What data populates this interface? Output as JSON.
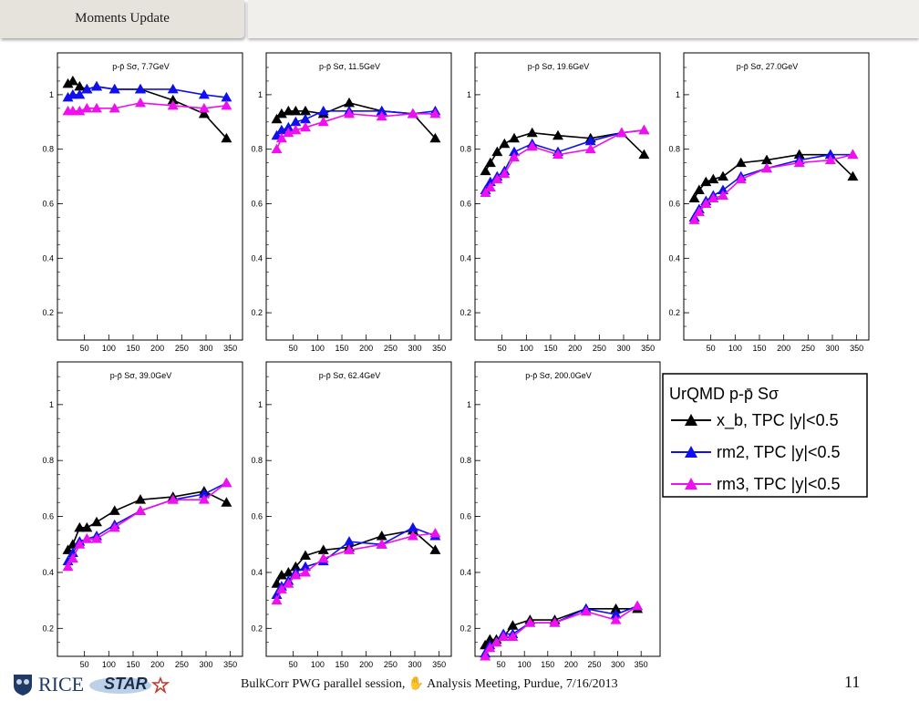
{
  "header": {
    "title": "Moments Update"
  },
  "footer": {
    "text": "BulkCorr PWG parallel session,  ✋  Analysis Meeting,  Purdue,  7/16/2013",
    "page_number": "11",
    "logos": [
      "RICE",
      "STAR"
    ]
  },
  "colors": {
    "xb": "#000000",
    "rm2": "#1010ee",
    "rm3": "#ee10ee"
  },
  "legend": {
    "title": "UrQMD p-p̄ Sσ",
    "entries": [
      {
        "key": "xb",
        "label": "x_b, TPC |y|<0.5"
      },
      {
        "key": "rm2",
        "label": "rm2, TPC |y|<0.5"
      },
      {
        "key": "rm3",
        "label": "rm3, TPC |y|<0.5"
      }
    ]
  },
  "chart_data": [
    {
      "type": "line",
      "title": "p-p̄ Sσ,  7.7GeV",
      "xlim": [
        0,
        360
      ],
      "ylim": [
        0.1,
        1.12
      ],
      "xticks": [
        50,
        100,
        150,
        200,
        250,
        300,
        350
      ],
      "yticks": [
        0.2,
        0.4,
        0.6,
        0.8,
        1
      ],
      "series": [
        {
          "key": "xb",
          "x": [
            16,
            26,
            40,
            55,
            75,
            112,
            165,
            232,
            296,
            342
          ],
          "y": [
            1.04,
            1.05,
            1.03,
            1.02,
            1.03,
            1.02,
            1.02,
            0.98,
            0.93,
            0.84
          ]
        },
        {
          "key": "rm2",
          "x": [
            16,
            26,
            40,
            55,
            75,
            112,
            165,
            232,
            296,
            342
          ],
          "y": [
            0.99,
            1.0,
            1.0,
            1.02,
            1.03,
            1.02,
            1.02,
            1.02,
            1.0,
            0.99
          ]
        },
        {
          "key": "rm3",
          "x": [
            16,
            26,
            40,
            55,
            75,
            112,
            165,
            232,
            296,
            342
          ],
          "y": [
            0.94,
            0.94,
            0.94,
            0.95,
            0.95,
            0.95,
            0.97,
            0.96,
            0.95,
            0.96
          ]
        }
      ]
    },
    {
      "type": "line",
      "title": "p-p̄ Sσ, 11.5GeV",
      "xlim": [
        0,
        360
      ],
      "ylim": [
        0.1,
        1.12
      ],
      "xticks": [
        50,
        100,
        150,
        200,
        250,
        300,
        350
      ],
      "yticks": [
        0.2,
        0.4,
        0.6,
        0.8,
        1
      ],
      "series": [
        {
          "key": "xb",
          "x": [
            16,
            26,
            40,
            55,
            75,
            112,
            165,
            232,
            296,
            342
          ],
          "y": [
            0.91,
            0.93,
            0.94,
            0.94,
            0.94,
            0.93,
            0.97,
            0.94,
            0.93,
            0.84
          ]
        },
        {
          "key": "rm2",
          "x": [
            16,
            26,
            40,
            55,
            75,
            112,
            165,
            232,
            296,
            342
          ],
          "y": [
            0.85,
            0.87,
            0.88,
            0.9,
            0.91,
            0.94,
            0.94,
            0.94,
            0.93,
            0.94
          ]
        },
        {
          "key": "rm3",
          "x": [
            16,
            26,
            40,
            55,
            75,
            112,
            165,
            232,
            296,
            342
          ],
          "y": [
            0.8,
            0.84,
            0.86,
            0.87,
            0.88,
            0.9,
            0.93,
            0.92,
            0.93,
            0.93
          ]
        }
      ]
    },
    {
      "type": "line",
      "title": "p-p̄ Sσ, 19.6GeV",
      "xlim": [
        0,
        360
      ],
      "ylim": [
        0.1,
        1.12
      ],
      "xticks": [
        50,
        100,
        150,
        200,
        250,
        300,
        350
      ],
      "yticks": [
        0.2,
        0.4,
        0.6,
        0.8,
        1
      ],
      "series": [
        {
          "key": "xb",
          "x": [
            16,
            26,
            40,
            55,
            75,
            112,
            165,
            232,
            296,
            342
          ],
          "y": [
            0.72,
            0.75,
            0.79,
            0.82,
            0.84,
            0.86,
            0.85,
            0.84,
            0.86,
            0.78
          ]
        },
        {
          "key": "rm2",
          "x": [
            16,
            26,
            40,
            55,
            75,
            112,
            165,
            232,
            296,
            342
          ],
          "y": [
            0.65,
            0.68,
            0.7,
            0.72,
            0.79,
            0.82,
            0.79,
            0.83,
            0.86,
            0.87
          ]
        },
        {
          "key": "rm3",
          "x": [
            16,
            26,
            40,
            55,
            75,
            112,
            165,
            232,
            296,
            342
          ],
          "y": [
            0.64,
            0.66,
            0.69,
            0.71,
            0.77,
            0.81,
            0.78,
            0.8,
            0.86,
            0.87
          ]
        }
      ]
    },
    {
      "type": "line",
      "title": "p-p̄ Sσ, 27.0GeV",
      "xlim": [
        0,
        360
      ],
      "ylim": [
        0.1,
        1.12
      ],
      "xticks": [
        50,
        100,
        150,
        200,
        250,
        300,
        350
      ],
      "yticks": [
        0.2,
        0.4,
        0.6,
        0.8,
        1
      ],
      "series": [
        {
          "key": "xb",
          "x": [
            16,
            26,
            40,
            55,
            75,
            112,
            165,
            232,
            296,
            342
          ],
          "y": [
            0.62,
            0.65,
            0.68,
            0.69,
            0.7,
            0.75,
            0.76,
            0.78,
            0.78,
            0.7
          ]
        },
        {
          "key": "rm2",
          "x": [
            16,
            26,
            40,
            55,
            75,
            112,
            165,
            232,
            296,
            342
          ],
          "y": [
            0.55,
            0.58,
            0.61,
            0.63,
            0.65,
            0.7,
            0.73,
            0.76,
            0.78,
            0.78
          ]
        },
        {
          "key": "rm3",
          "x": [
            16,
            26,
            40,
            55,
            75,
            112,
            165,
            232,
            296,
            342
          ],
          "y": [
            0.54,
            0.57,
            0.6,
            0.62,
            0.63,
            0.69,
            0.73,
            0.75,
            0.76,
            0.78
          ]
        }
      ]
    },
    {
      "type": "line",
      "title": "p-p̄ Sσ, 39.0GeV",
      "xlim": [
        0,
        360
      ],
      "ylim": [
        0.1,
        1.12
      ],
      "xticks": [
        50,
        100,
        150,
        200,
        250,
        300,
        350
      ],
      "yticks": [
        0.2,
        0.4,
        0.6,
        0.8,
        1
      ],
      "series": [
        {
          "key": "xb",
          "x": [
            16,
            26,
            40,
            55,
            75,
            112,
            165,
            232,
            296,
            342
          ],
          "y": [
            0.48,
            0.5,
            0.56,
            0.56,
            0.58,
            0.62,
            0.66,
            0.67,
            0.69,
            0.65
          ]
        },
        {
          "key": "rm2",
          "x": [
            16,
            26,
            40,
            55,
            75,
            112,
            165,
            232,
            296,
            342
          ],
          "y": [
            0.44,
            0.47,
            0.51,
            0.52,
            0.53,
            0.57,
            0.62,
            0.66,
            0.68,
            0.72
          ]
        },
        {
          "key": "rm3",
          "x": [
            16,
            26,
            40,
            55,
            75,
            112,
            165,
            232,
            296,
            342
          ],
          "y": [
            0.42,
            0.45,
            0.5,
            0.52,
            0.52,
            0.56,
            0.62,
            0.66,
            0.66,
            0.72
          ]
        }
      ]
    },
    {
      "type": "line",
      "title": "p-p̄ Sσ, 62.4GeV",
      "xlim": [
        0,
        360
      ],
      "ylim": [
        0.1,
        1.12
      ],
      "xticks": [
        50,
        100,
        150,
        200,
        250,
        300,
        350
      ],
      "yticks": [
        0.2,
        0.4,
        0.6,
        0.8,
        1
      ],
      "series": [
        {
          "key": "xb",
          "x": [
            16,
            26,
            40,
            55,
            75,
            112,
            165,
            232,
            296,
            342
          ],
          "y": [
            0.36,
            0.39,
            0.4,
            0.42,
            0.46,
            0.48,
            0.49,
            0.53,
            0.55,
            0.48
          ]
        },
        {
          "key": "rm2",
          "x": [
            16,
            26,
            40,
            55,
            75,
            112,
            165,
            232,
            296,
            342
          ],
          "y": [
            0.32,
            0.35,
            0.37,
            0.4,
            0.42,
            0.44,
            0.51,
            0.5,
            0.56,
            0.53
          ]
        },
        {
          "key": "rm3",
          "x": [
            16,
            26,
            40,
            55,
            75,
            112,
            165,
            232,
            296,
            342
          ],
          "y": [
            0.3,
            0.34,
            0.36,
            0.39,
            0.4,
            0.45,
            0.48,
            0.5,
            0.53,
            0.54
          ]
        }
      ]
    },
    {
      "type": "line",
      "title": "p-p̄ Sσ, 200.0GeV",
      "xlim": [
        0,
        375
      ],
      "ylim": [
        0.1,
        1.12
      ],
      "xticks": [
        50,
        100,
        150,
        200,
        250,
        300,
        350
      ],
      "yticks": [
        0.2,
        0.4,
        0.6,
        0.8,
        1
      ],
      "series": [
        {
          "key": "xb",
          "x": [
            16,
            26,
            40,
            55,
            75,
            112,
            165,
            232,
            296,
            342
          ],
          "y": [
            0.14,
            0.16,
            0.16,
            0.17,
            0.21,
            0.23,
            0.23,
            0.27,
            0.27,
            0.27
          ]
        },
        {
          "key": "rm2",
          "x": [
            16,
            26,
            40,
            55,
            75,
            112,
            165,
            232,
            296,
            342
          ],
          "y": [
            0.11,
            0.14,
            0.15,
            0.18,
            0.18,
            0.22,
            0.22,
            0.27,
            0.25,
            0.28
          ]
        },
        {
          "key": "rm3",
          "x": [
            16,
            26,
            40,
            55,
            75,
            112,
            165,
            232,
            296,
            342
          ],
          "y": [
            0.1,
            0.13,
            0.15,
            0.17,
            0.17,
            0.22,
            0.22,
            0.26,
            0.23,
            0.28
          ]
        }
      ]
    }
  ]
}
